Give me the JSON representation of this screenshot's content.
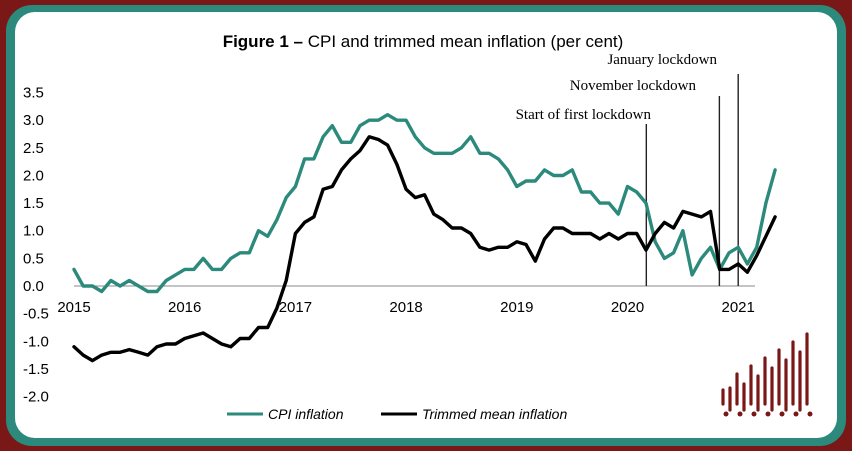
{
  "chart_data": {
    "type": "line",
    "title_bold": "Figure 1 –",
    "title_rest": " CPI and trimmed mean inflation (per cent)",
    "xlabel": "",
    "ylabel": "",
    "xlim": [
      2015,
      2021.42
    ],
    "ylim": [
      -2.0,
      3.5
    ],
    "x_ticks": [
      "2015",
      "2016",
      "2017",
      "2018",
      "2019",
      "2020",
      "2021"
    ],
    "y_ticks": [
      "3.5",
      "3.0",
      "2.5",
      "2.0",
      "1.5",
      "1.0",
      "0.5",
      "0.0",
      "-0.5",
      "-1.0",
      "-1.5",
      "-2.0"
    ],
    "grid": false,
    "legend_position": "bottom",
    "series": [
      {
        "name": "CPI inflation",
        "color": "#2b8a7c",
        "x_start": 2015,
        "step_months": 1,
        "values": [
          0.3,
          0.0,
          0.0,
          -0.1,
          0.1,
          0.0,
          0.1,
          0.0,
          -0.1,
          -0.1,
          0.1,
          0.2,
          0.3,
          0.3,
          0.5,
          0.3,
          0.3,
          0.5,
          0.6,
          0.6,
          1.0,
          0.9,
          1.2,
          1.6,
          1.8,
          2.3,
          2.3,
          2.7,
          2.9,
          2.6,
          2.6,
          2.9,
          3.0,
          3.0,
          3.1,
          3.0,
          3.0,
          2.7,
          2.5,
          2.4,
          2.4,
          2.4,
          2.5,
          2.7,
          2.4,
          2.4,
          2.3,
          2.1,
          1.8,
          1.9,
          1.9,
          2.1,
          2.0,
          2.0,
          2.1,
          1.7,
          1.7,
          1.5,
          1.5,
          1.3,
          1.8,
          1.7,
          1.5,
          0.8,
          0.5,
          0.6,
          1.0,
          0.2,
          0.5,
          0.7,
          0.3,
          0.6,
          0.7,
          0.4,
          0.7,
          1.5,
          2.1
        ]
      },
      {
        "name": "Trimmed mean inflation",
        "color": "#000000",
        "x_start": 2015,
        "step_months": 1,
        "values": [
          -1.1,
          -1.25,
          -1.35,
          -1.25,
          -1.2,
          -1.2,
          -1.15,
          -1.2,
          -1.25,
          -1.1,
          -1.05,
          -1.05,
          -0.95,
          -0.9,
          -0.85,
          -0.95,
          -1.05,
          -1.1,
          -0.95,
          -0.95,
          -0.75,
          -0.75,
          -0.4,
          0.1,
          0.95,
          1.15,
          1.25,
          1.75,
          1.8,
          2.1,
          2.3,
          2.45,
          2.7,
          2.65,
          2.55,
          2.2,
          1.75,
          1.6,
          1.65,
          1.3,
          1.2,
          1.05,
          1.05,
          0.95,
          0.7,
          0.65,
          0.7,
          0.7,
          0.8,
          0.75,
          0.45,
          0.85,
          1.05,
          1.05,
          0.95,
          0.95,
          0.95,
          0.85,
          0.95,
          0.85,
          0.95,
          0.95,
          0.65,
          0.95,
          1.15,
          1.05,
          1.35,
          1.3,
          1.25,
          1.35,
          0.3,
          0.3,
          0.4,
          0.25,
          0.55,
          0.9,
          1.25
        ]
      }
    ],
    "annotations": [
      {
        "label": "Start of first lockdown",
        "x": 2020.17
      },
      {
        "label": "November lockdown",
        "x": 2020.83
      },
      {
        "label": "January lockdown",
        "x": 2021.0
      }
    ]
  },
  "logo": {
    "name": "bars-logo",
    "color": "#7a1717"
  }
}
